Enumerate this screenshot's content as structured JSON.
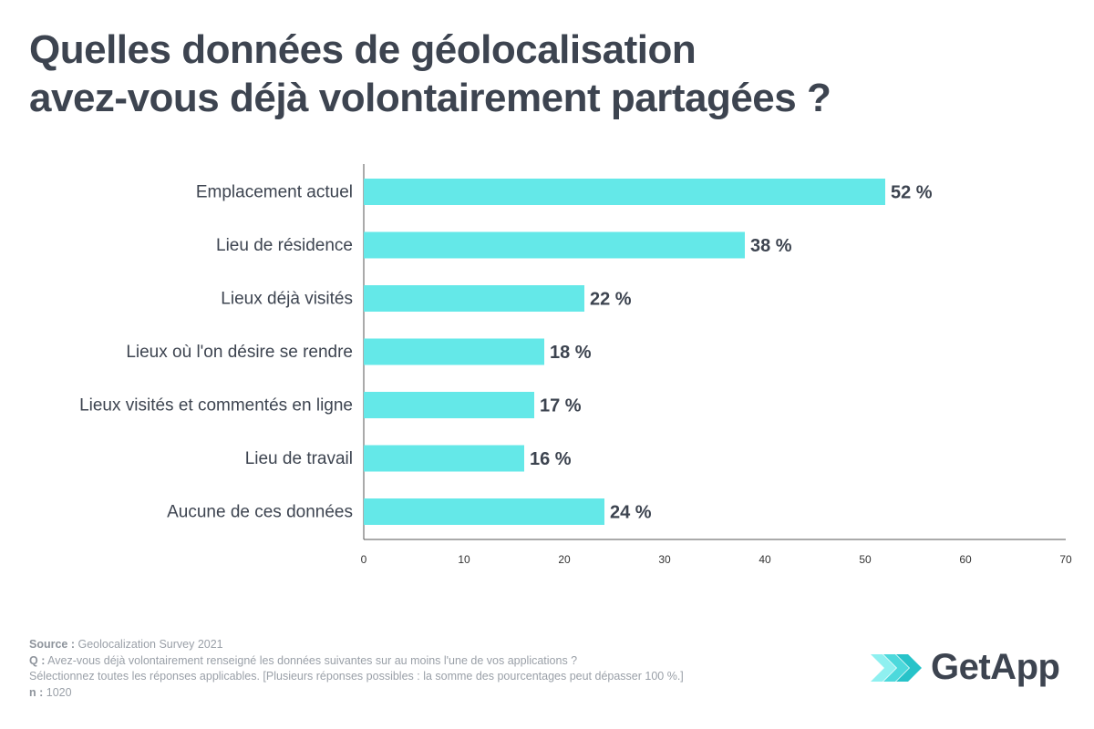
{
  "title_lines": [
    "Quelles données de géolocalisation",
    "avez-vous déjà volontairement partagées ?"
  ],
  "chart_data": {
    "type": "bar",
    "orientation": "horizontal",
    "categories": [
      "Emplacement actuel",
      "Lieu de résidence",
      "Lieux déjà visités",
      "Lieux où l'on désire se rendre",
      "Lieux visités et commentés en ligne",
      "Lieu de travail",
      "Aucune de ces données"
    ],
    "values": [
      52,
      38,
      22,
      18,
      17,
      16,
      24
    ],
    "data_labels": [
      "52 %",
      "38 %",
      "22 %",
      "18 %",
      "17 %",
      "16 %",
      "24 %"
    ],
    "xlim": [
      0,
      70
    ],
    "xticks": [
      0,
      10,
      20,
      30,
      40,
      50,
      60,
      70
    ],
    "grid": false,
    "bar_color": "#64e8e8",
    "label_color": "#3d4450"
  },
  "footer": {
    "source_label": "Source :",
    "source_text": "Geolocalization Survey 2021",
    "q_label": "Q :",
    "q_text": "Avez-vous déjà volontairement renseigné les données suivantes sur au moins l'une de vos applications ?",
    "q_text_2": "Sélectionnez toutes les réponses applicables. [Plusieurs réponses possibles : la somme des pourcentages peut dépasser 100 %.]",
    "n_label": "n :",
    "n_text": "1020"
  },
  "logo": {
    "text": "GetApp",
    "icon": "getapp-chevrons-icon",
    "colors": [
      "#8ff0f0",
      "#4dd9dc",
      "#27c3c9"
    ]
  }
}
